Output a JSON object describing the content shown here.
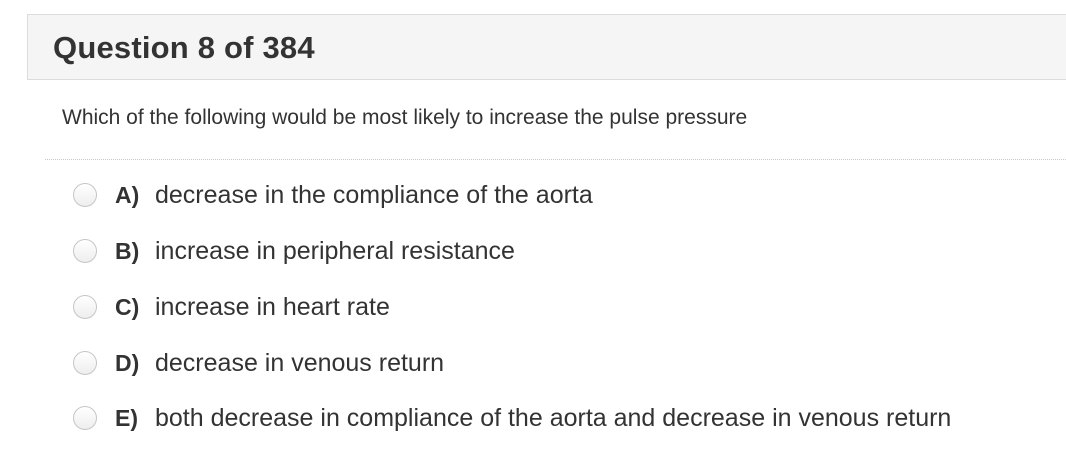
{
  "header": {
    "title": "Question 8 of 384"
  },
  "question": {
    "text": "Which of the following would be most likely to increase the pulse pressure"
  },
  "options": [
    {
      "letter": "A)",
      "text": "decrease in the compliance of the aorta"
    },
    {
      "letter": "B)",
      "text": "increase in peripheral resistance"
    },
    {
      "letter": "C)",
      "text": "increase in heart rate"
    },
    {
      "letter": "D)",
      "text": "decrease in venous return"
    },
    {
      "letter": "E)",
      "text": "both decrease in compliance of the aorta and decrease in venous return"
    }
  ],
  "colors": {
    "text": "#333333",
    "header_bg": "#f5f5f5",
    "border": "#dcdcdc"
  }
}
